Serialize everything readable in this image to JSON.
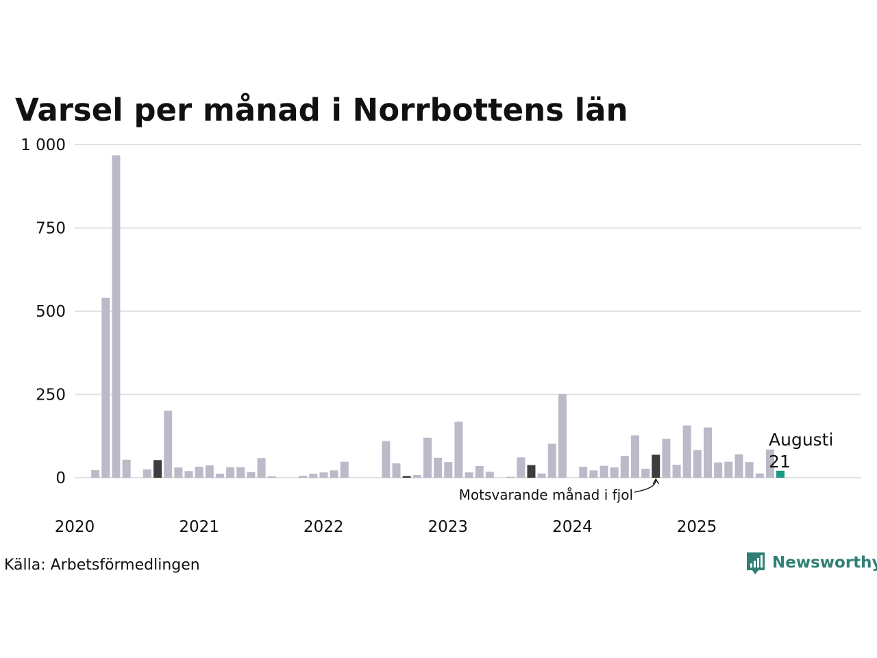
{
  "chart_data": {
    "type": "bar",
    "title": "Varsel per månad i Norrbottens län",
    "xlabel": "",
    "ylabel": "",
    "ylim": [
      0,
      1000
    ],
    "y_ticks": [
      0,
      250,
      500,
      750,
      1000
    ],
    "y_tick_labels": [
      "0",
      "250",
      "500",
      "750",
      "1 000"
    ],
    "x_tick_labels": [
      "2020",
      "2021",
      "2022",
      "2023",
      "2024",
      "2025"
    ],
    "start_month": "2020-01",
    "values": [
      0,
      23,
      540,
      968,
      54,
      0,
      25,
      53,
      201,
      31,
      20,
      33,
      37,
      12,
      32,
      32,
      17,
      59,
      4,
      0,
      0,
      6,
      12,
      16,
      22,
      48,
      0,
      0,
      0,
      110,
      43,
      5,
      8,
      120,
      60,
      47,
      168,
      16,
      35,
      18,
      0,
      3,
      61,
      38,
      13,
      102,
      251,
      0,
      33,
      22,
      36,
      31,
      66,
      127,
      27,
      69,
      117,
      39,
      157,
      83,
      151,
      46,
      48,
      70,
      47,
      13,
      85,
      21
    ],
    "highlight_same_month_indices": [
      7,
      31,
      43,
      55
    ],
    "latest_index": 67,
    "colors": {
      "bar": "#bbbac8",
      "same_month_last_year": "#3d3d3d",
      "latest": "#1a9a83",
      "grid": "#e2e2e2",
      "brand": "#2f7f74"
    },
    "latest_label": "Augusti",
    "latest_value_label": "21",
    "annotation": "Motsvarande månad i fjol",
    "source": "Källa: Arbetsförmedlingen",
    "grid": true
  },
  "brand": {
    "name": "Newsworthy",
    "logo_icon": "bar-chart-speech-bubble-icon"
  }
}
